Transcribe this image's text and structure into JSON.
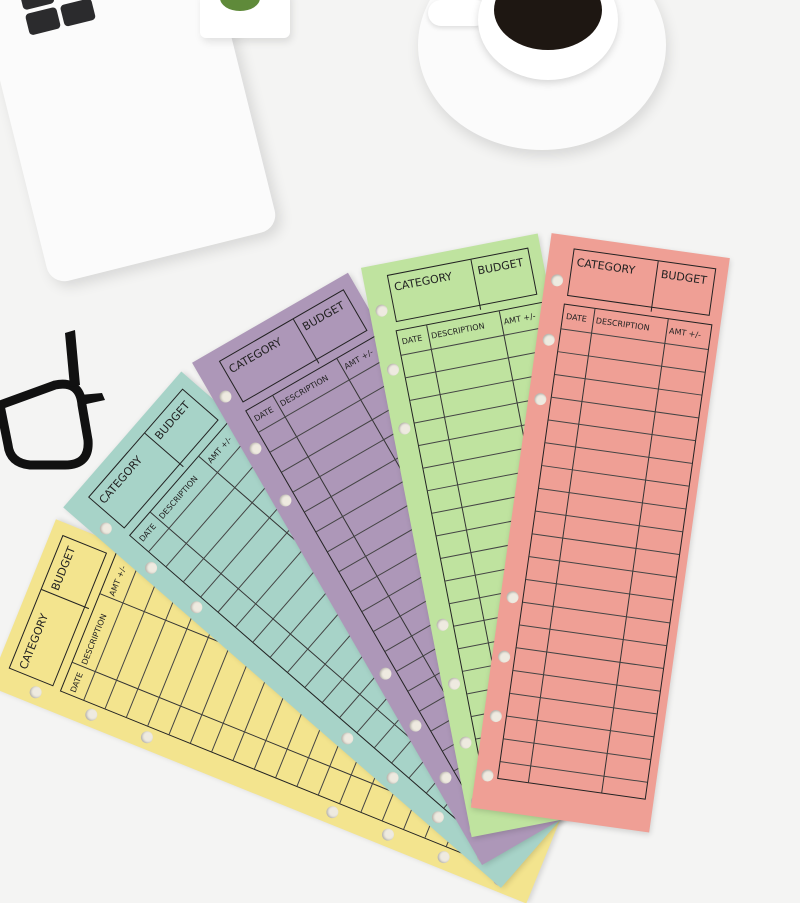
{
  "sheet_text": {
    "category": "CATEGORY",
    "budget": "BUDGET",
    "date": "DATE",
    "description": "DESCRIPTION",
    "amount": "AMT +/-"
  },
  "sheets": [
    {
      "name": "yellow",
      "color": "#f3e48e"
    },
    {
      "name": "teal",
      "color": "#a7d3c8"
    },
    {
      "name": "purple",
      "color": "#ad97b8"
    },
    {
      "name": "green",
      "color": "#bfe39f"
    },
    {
      "name": "pink",
      "color": "#ef9f95"
    }
  ],
  "objects": [
    "laptop",
    "eyeglasses",
    "coffee-cup",
    "potted-plant"
  ]
}
